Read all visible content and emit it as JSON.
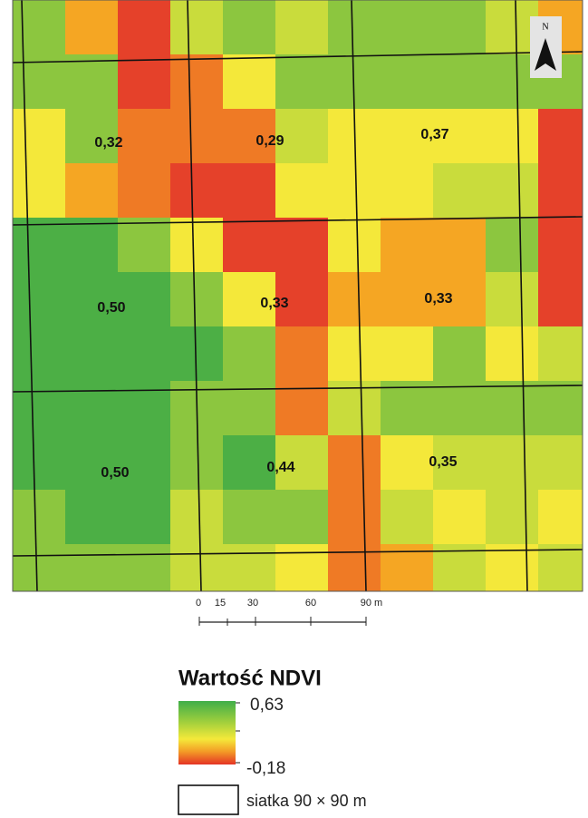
{
  "map": {
    "cells": [
      "0,32",
      "0,29",
      "0,37",
      "0,50",
      "0,33",
      "0,33",
      "0,50",
      "0,44",
      "0,35"
    ],
    "north": "N",
    "scale_bar": {
      "ticks": [
        "0",
        "15",
        "30",
        "60",
        "90 m"
      ]
    },
    "legend": {
      "title": "Wartość NDVI",
      "max": "0,63",
      "min": "-0,18",
      "grid_label": "siatka 90 × 90 m"
    }
  }
}
